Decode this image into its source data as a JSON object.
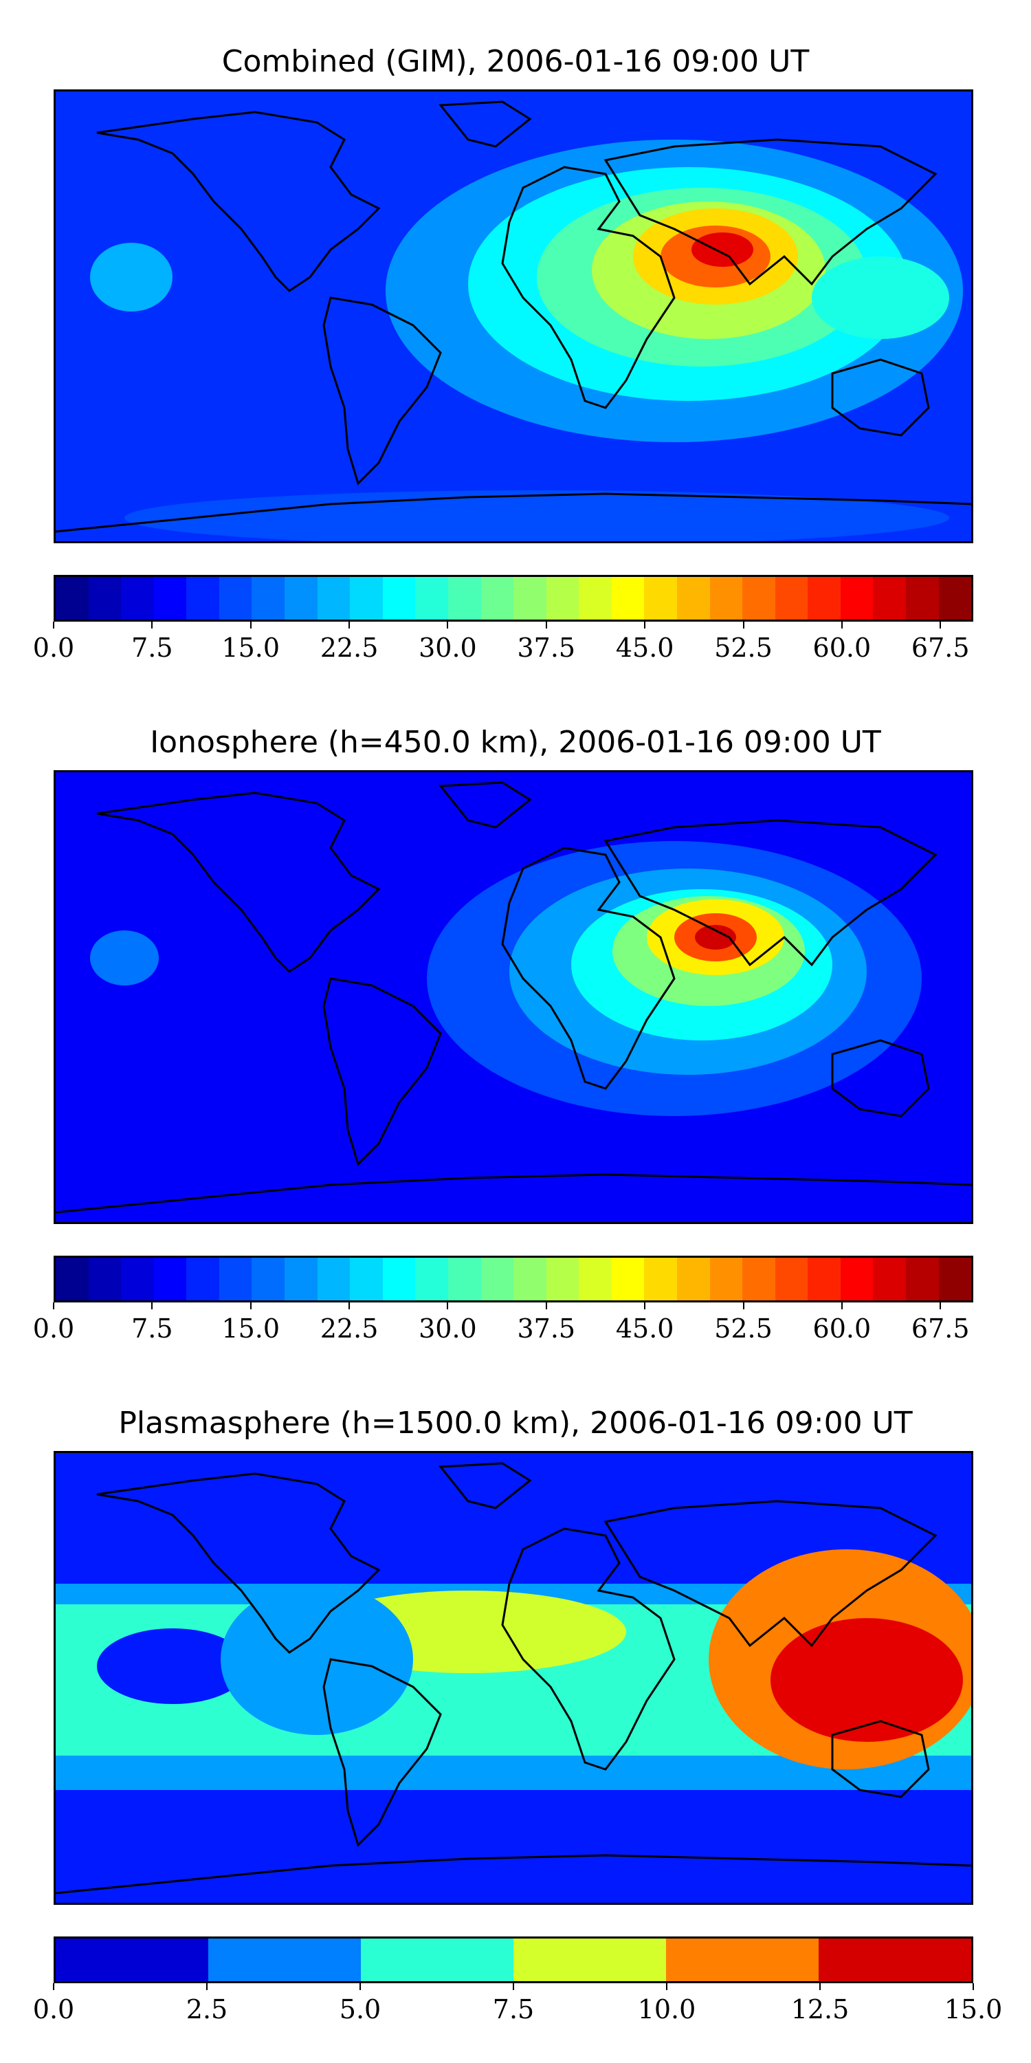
{
  "panels": [
    {
      "title": "Combined (GIM), 2006-01-16 09:00 UT",
      "colorbar": {
        "min": 0.0,
        "max": 70.0,
        "levels": 28,
        "ticks": [
          "0.0",
          "7.5",
          "15.0",
          "22.5",
          "30.0",
          "37.5",
          "45.0",
          "52.5",
          "60.0",
          "67.5"
        ],
        "tick_values": [
          0,
          7.5,
          15,
          22.5,
          30,
          37.5,
          45,
          52.5,
          60,
          67.5
        ]
      }
    },
    {
      "title": "Ionosphere  (h=450.0 km), 2006-01-16 09:00 UT",
      "colorbar": {
        "min": 0.0,
        "max": 70.0,
        "levels": 28,
        "ticks": [
          "0.0",
          "7.5",
          "15.0",
          "22.5",
          "30.0",
          "37.5",
          "45.0",
          "52.5",
          "60.0",
          "67.5"
        ],
        "tick_values": [
          0,
          7.5,
          15,
          22.5,
          30,
          37.5,
          45,
          52.5,
          60,
          67.5
        ]
      }
    },
    {
      "title": "Plasmasphere (h=1500.0 km), 2006-01-16 09:00 UT",
      "colorbar": {
        "min": 0.0,
        "max": 15.0,
        "levels": 6,
        "ticks": [
          "0.0",
          "2.5",
          "5.0",
          "7.5",
          "10.0",
          "12.5",
          "15.0"
        ],
        "tick_values": [
          0,
          2.5,
          5,
          7.5,
          10,
          12.5,
          15
        ]
      }
    }
  ],
  "colors": {
    "jet_stops": [
      "#00007f",
      "#0000ff",
      "#007fff",
      "#00ffff",
      "#7fff7f",
      "#ffff00",
      "#ff7f00",
      "#ff0000",
      "#7f0000"
    ],
    "background_field": "#1a35ff"
  }
}
